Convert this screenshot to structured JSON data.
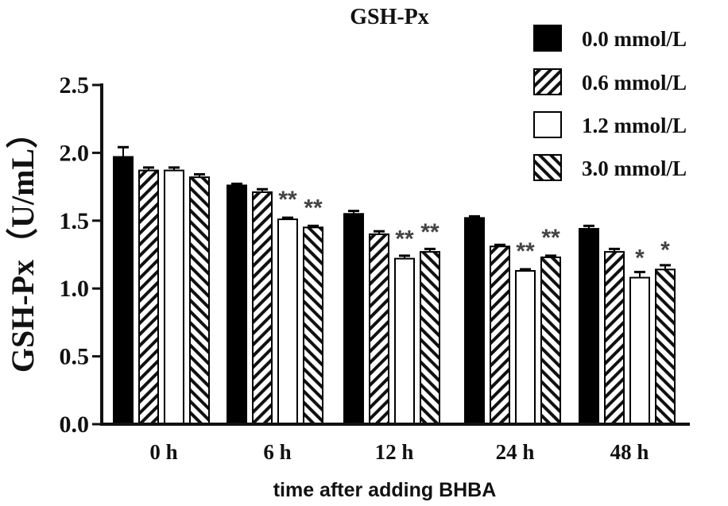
{
  "chart_data": {
    "type": "bar",
    "title": "GSH-Px",
    "ylabel": "GSH-Px（U/mL）",
    "xlabel": "time after adding BHBA",
    "ylim": [
      0,
      2.5
    ],
    "yticks": [
      "0.0",
      "0.5",
      "1.0",
      "1.5",
      "2.0",
      "2.5"
    ],
    "categories": [
      "0 h",
      "6 h",
      "12 h",
      "24 h",
      "48 h"
    ],
    "legend_position": "top-right",
    "series": [
      {
        "name": "0.0 mmol/L",
        "pattern": "solid",
        "values": [
          1.97,
          1.76,
          1.55,
          1.52,
          1.44
        ],
        "errors": [
          0.06,
          0.0,
          0.01,
          0.0,
          0.01
        ],
        "annotations": [
          "",
          "",
          "",
          "",
          ""
        ]
      },
      {
        "name": "0.6 mmol/L",
        "pattern": "hatch-backslash",
        "values": [
          1.87,
          1.71,
          1.4,
          1.31,
          1.27
        ],
        "errors": [
          0.01,
          0.01,
          0.01,
          0.0,
          0.01
        ],
        "annotations": [
          "",
          "",
          "",
          "",
          ""
        ]
      },
      {
        "name": "1.2 mmol/L",
        "pattern": "open",
        "values": [
          1.87,
          1.51,
          1.22,
          1.13,
          1.08
        ],
        "errors": [
          0.01,
          0.0,
          0.01,
          0.0,
          0.03
        ],
        "annotations": [
          "",
          "**",
          "**",
          "**",
          "*"
        ]
      },
      {
        "name": "3.0 mmol/L",
        "pattern": "hatch-slash",
        "values": [
          1.82,
          1.45,
          1.27,
          1.23,
          1.14
        ],
        "errors": [
          0.01,
          0.0,
          0.01,
          0.0,
          0.02
        ],
        "annotations": [
          "",
          "**",
          "**",
          "**",
          "*"
        ]
      }
    ]
  }
}
